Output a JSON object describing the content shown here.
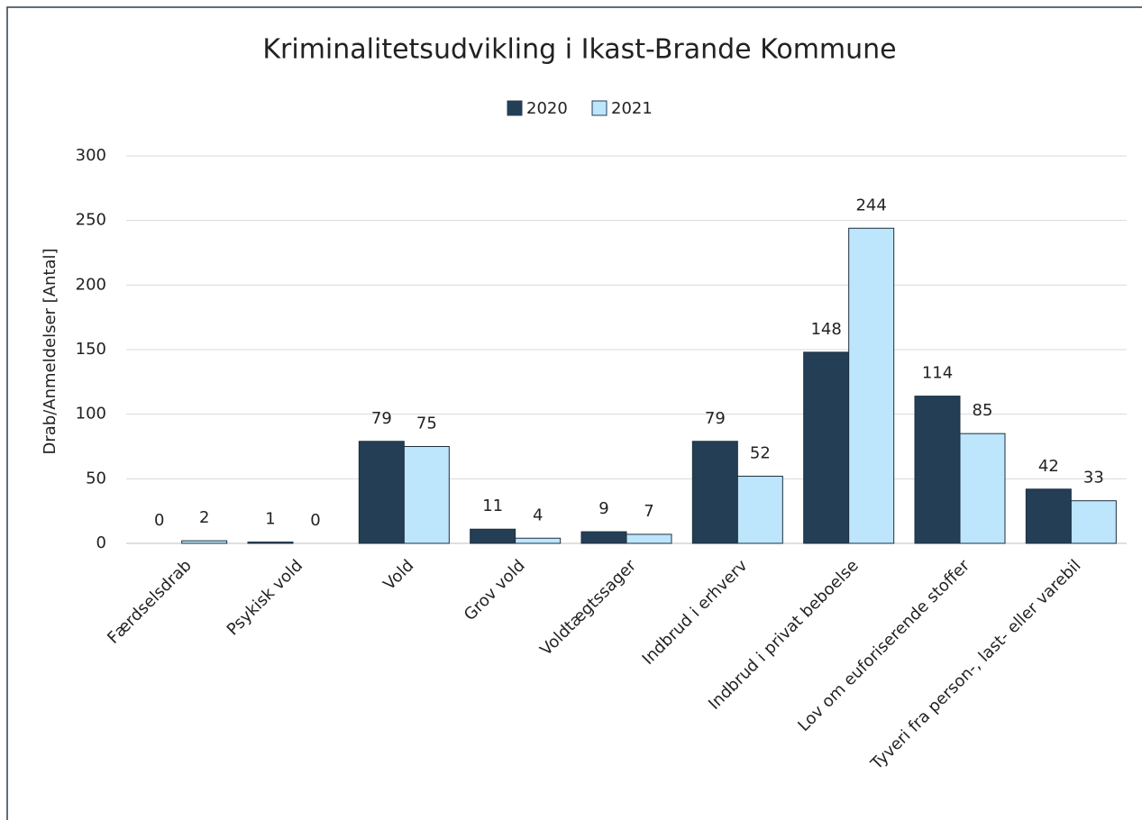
{
  "chart_data": {
    "type": "bar",
    "title": "Kriminalitetsudvikling i Ikast-Brande Kommune",
    "ylabel": "Drab/Anmeldelser [Antal]",
    "categories": [
      "Færdselsdrab",
      "Psykisk vold",
      "Vold",
      "Grov vold",
      "Voldtægtssager",
      "Indbrud i erhverv",
      "Indbrud i privat beboelse",
      "Lov om euforiserende stoffer",
      "Tyveri fra person-, last- eller varebil"
    ],
    "series": [
      {
        "name": "2020",
        "color": "#243f55",
        "values": [
          0,
          1,
          79,
          11,
          9,
          79,
          148,
          114,
          42
        ]
      },
      {
        "name": "2021",
        "color": "#bde5fb",
        "values": [
          2,
          0,
          75,
          4,
          7,
          52,
          244,
          85,
          33
        ]
      }
    ],
    "ylim": [
      0,
      300
    ],
    "yticks": [
      0,
      50,
      100,
      150,
      200,
      250,
      300
    ],
    "grid": true,
    "legend": "top"
  }
}
